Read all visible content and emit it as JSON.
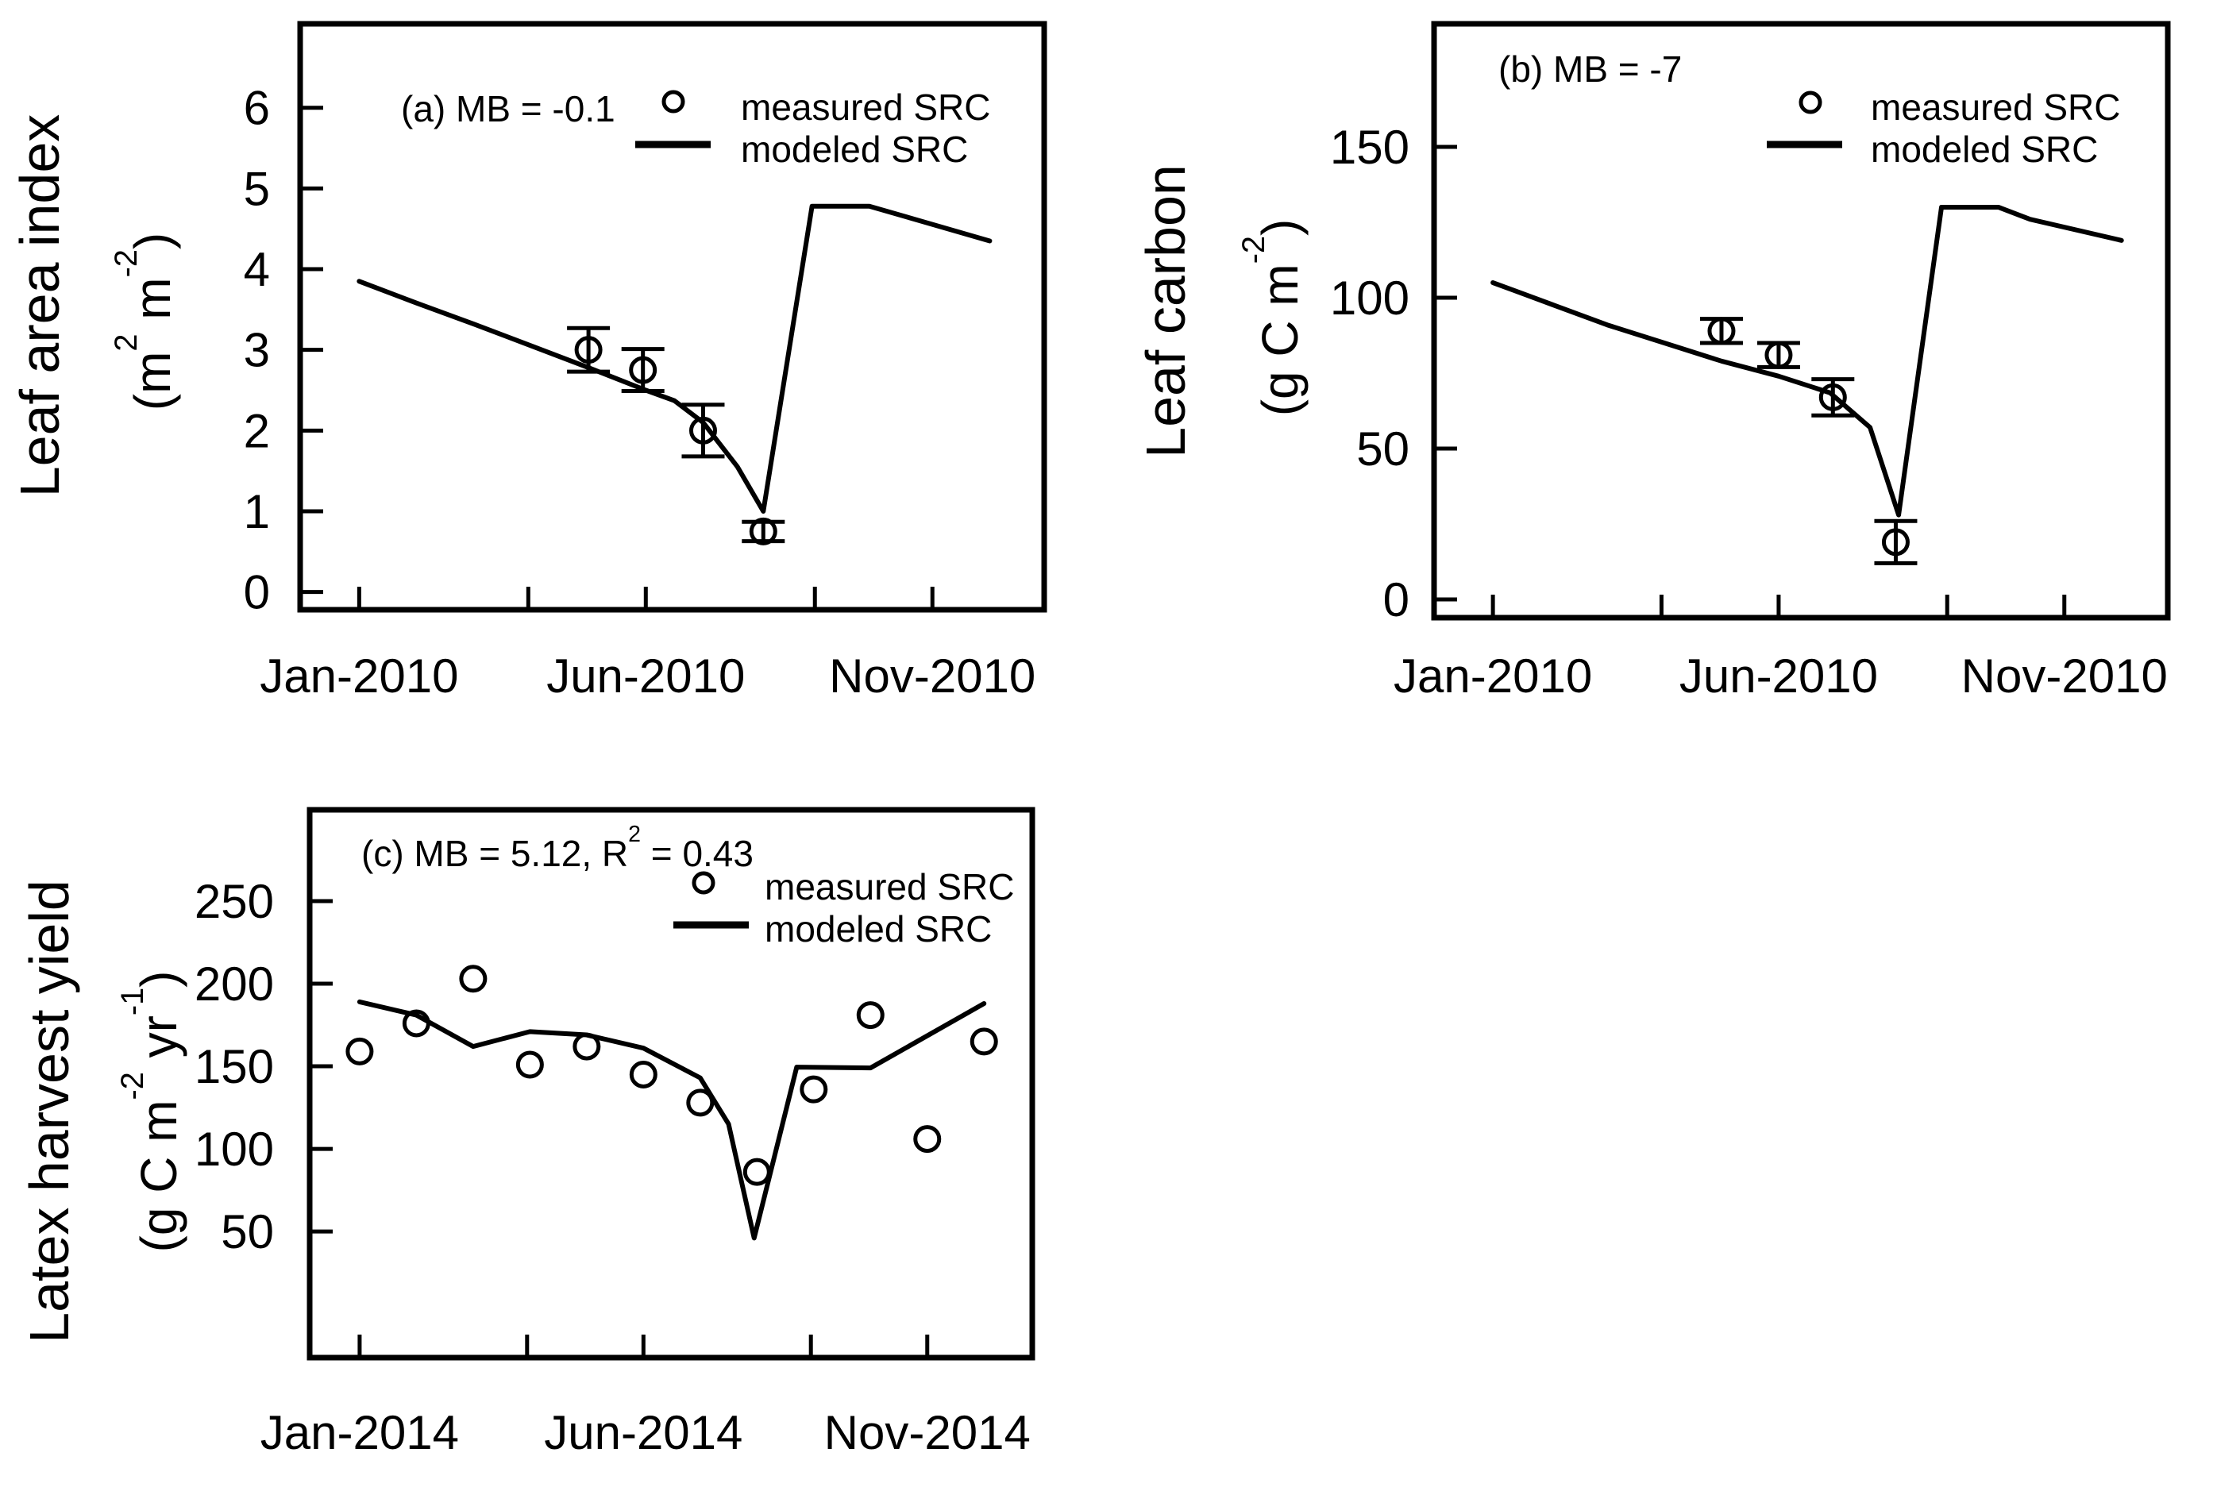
{
  "figure": {
    "background": "#ffffff",
    "ink": "#000000"
  },
  "chart_data": [
    {
      "id": "a",
      "type": "line+scatter",
      "annotation": "(a) MB = -0.1",
      "y_axis_title": "Leaf area index",
      "y_axis_unit": "(m^{2} m^{-2})",
      "legend": {
        "measured": "measured SRC",
        "modeled": "modeled SRC"
      },
      "x_ticks": [
        {
          "m": 0,
          "label": "Jan-2010"
        },
        {
          "m": 2.95,
          "label": ""
        },
        {
          "m": 5,
          "label": "Jun-2010"
        },
        {
          "m": 7.95,
          "label": ""
        },
        {
          "m": 10,
          "label": "Nov-2010"
        }
      ],
      "y_ticks": [
        0,
        1,
        2,
        3,
        4,
        5,
        6
      ],
      "xlim": [
        -1.03,
        11.95
      ],
      "ylim": [
        -0.22,
        7.04
      ],
      "modeled_monthly": [
        [
          0,
          3.85
        ],
        [
          1,
          3.58
        ],
        [
          2,
          3.32
        ],
        [
          3,
          3.05
        ],
        [
          4,
          2.78
        ],
        [
          5,
          2.5
        ],
        [
          5.5,
          2.37
        ],
        [
          6,
          2.1
        ],
        [
          6.6,
          1.55
        ],
        [
          7.05,
          1.0
        ],
        [
          7.9,
          4.78
        ],
        [
          8.9,
          4.78
        ],
        [
          11,
          4.35
        ]
      ],
      "measured": [
        {
          "m": 4.0,
          "v": 3.0,
          "e": 0.27
        },
        {
          "m": 4.95,
          "v": 2.75,
          "e": 0.26
        },
        {
          "m": 6.0,
          "v": 2.0,
          "e": 0.32
        },
        {
          "m": 7.05,
          "v": 0.75,
          "e": 0.12
        }
      ]
    },
    {
      "id": "b",
      "type": "line+scatter",
      "annotation": "(b) MB = -7",
      "y_axis_title": "Leaf carbon",
      "y_axis_unit": "(g C m^{-2})",
      "legend": {
        "measured": "measured SRC",
        "modeled": "modeled SRC"
      },
      "x_ticks": [
        {
          "m": 0,
          "label": "Jan-2010"
        },
        {
          "m": 2.95,
          "label": ""
        },
        {
          "m": 5,
          "label": "Jun-2010"
        },
        {
          "m": 7.95,
          "label": ""
        },
        {
          "m": 10,
          "label": "Nov-2010"
        }
      ],
      "y_ticks": [
        0,
        50,
        100,
        150
      ],
      "xlim": [
        -1.03,
        11.81
      ],
      "ylim": [
        -6.05,
        190.8
      ],
      "modeled_monthly": [
        [
          0,
          105
        ],
        [
          1,
          98
        ],
        [
          2,
          91
        ],
        [
          3,
          85
        ],
        [
          4,
          79
        ],
        [
          5,
          74
        ],
        [
          5.9,
          68.5
        ],
        [
          6.6,
          57
        ],
        [
          7.1,
          28
        ],
        [
          7.85,
          130
        ],
        [
          8.85,
          130
        ],
        [
          9.4,
          126
        ],
        [
          11,
          119
        ]
      ],
      "measured": [
        {
          "m": 4.0,
          "v": 89,
          "e": 4
        },
        {
          "m": 5.0,
          "v": 81,
          "e": 4
        },
        {
          "m": 5.95,
          "v": 67,
          "e": 6
        },
        {
          "m": 7.05,
          "v": 19,
          "e": 7
        }
      ]
    },
    {
      "id": "c",
      "type": "line+scatter",
      "annotation": "(c) MB = 5.12, R^{2} = 0.43",
      "y_axis_title": "Latex harvest yield",
      "y_axis_unit": "(g C m^{-2} yr^{-1})",
      "legend": {
        "measured": "measured SRC",
        "modeled": "modeled SRC"
      },
      "x_ticks": [
        {
          "m": 0,
          "label": "Jan-2014"
        },
        {
          "m": 2.95,
          "label": ""
        },
        {
          "m": 5,
          "label": "Jun-2014"
        },
        {
          "m": 7.95,
          "label": ""
        },
        {
          "m": 10,
          "label": "Nov-2014"
        }
      ],
      "y_ticks": [
        50,
        100,
        150,
        200,
        250
      ],
      "xlim": [
        -0.88,
        11.85
      ],
      "ylim": [
        -26.4,
        305.3
      ],
      "modeled_monthly": [
        [
          0,
          189
        ],
        [
          1,
          181
        ],
        [
          2,
          162
        ],
        [
          3,
          171
        ],
        [
          4,
          169
        ],
        [
          5,
          161
        ],
        [
          6,
          143
        ],
        [
          6.5,
          115
        ],
        [
          6.95,
          46
        ],
        [
          7.7,
          149.5
        ],
        [
          9,
          149
        ],
        [
          11,
          188
        ]
      ],
      "measured": [
        {
          "m": 0,
          "v": 159
        },
        {
          "m": 1,
          "v": 176
        },
        {
          "m": 2,
          "v": 203
        },
        {
          "m": 3,
          "v": 151
        },
        {
          "m": 4,
          "v": 162
        },
        {
          "m": 5,
          "v": 145
        },
        {
          "m": 6,
          "v": 128
        },
        {
          "m": 7,
          "v": 86
        },
        {
          "m": 8,
          "v": 136
        },
        {
          "m": 9,
          "v": 181
        },
        {
          "m": 10,
          "v": 106
        },
        {
          "m": 11,
          "v": 165
        }
      ]
    }
  ]
}
